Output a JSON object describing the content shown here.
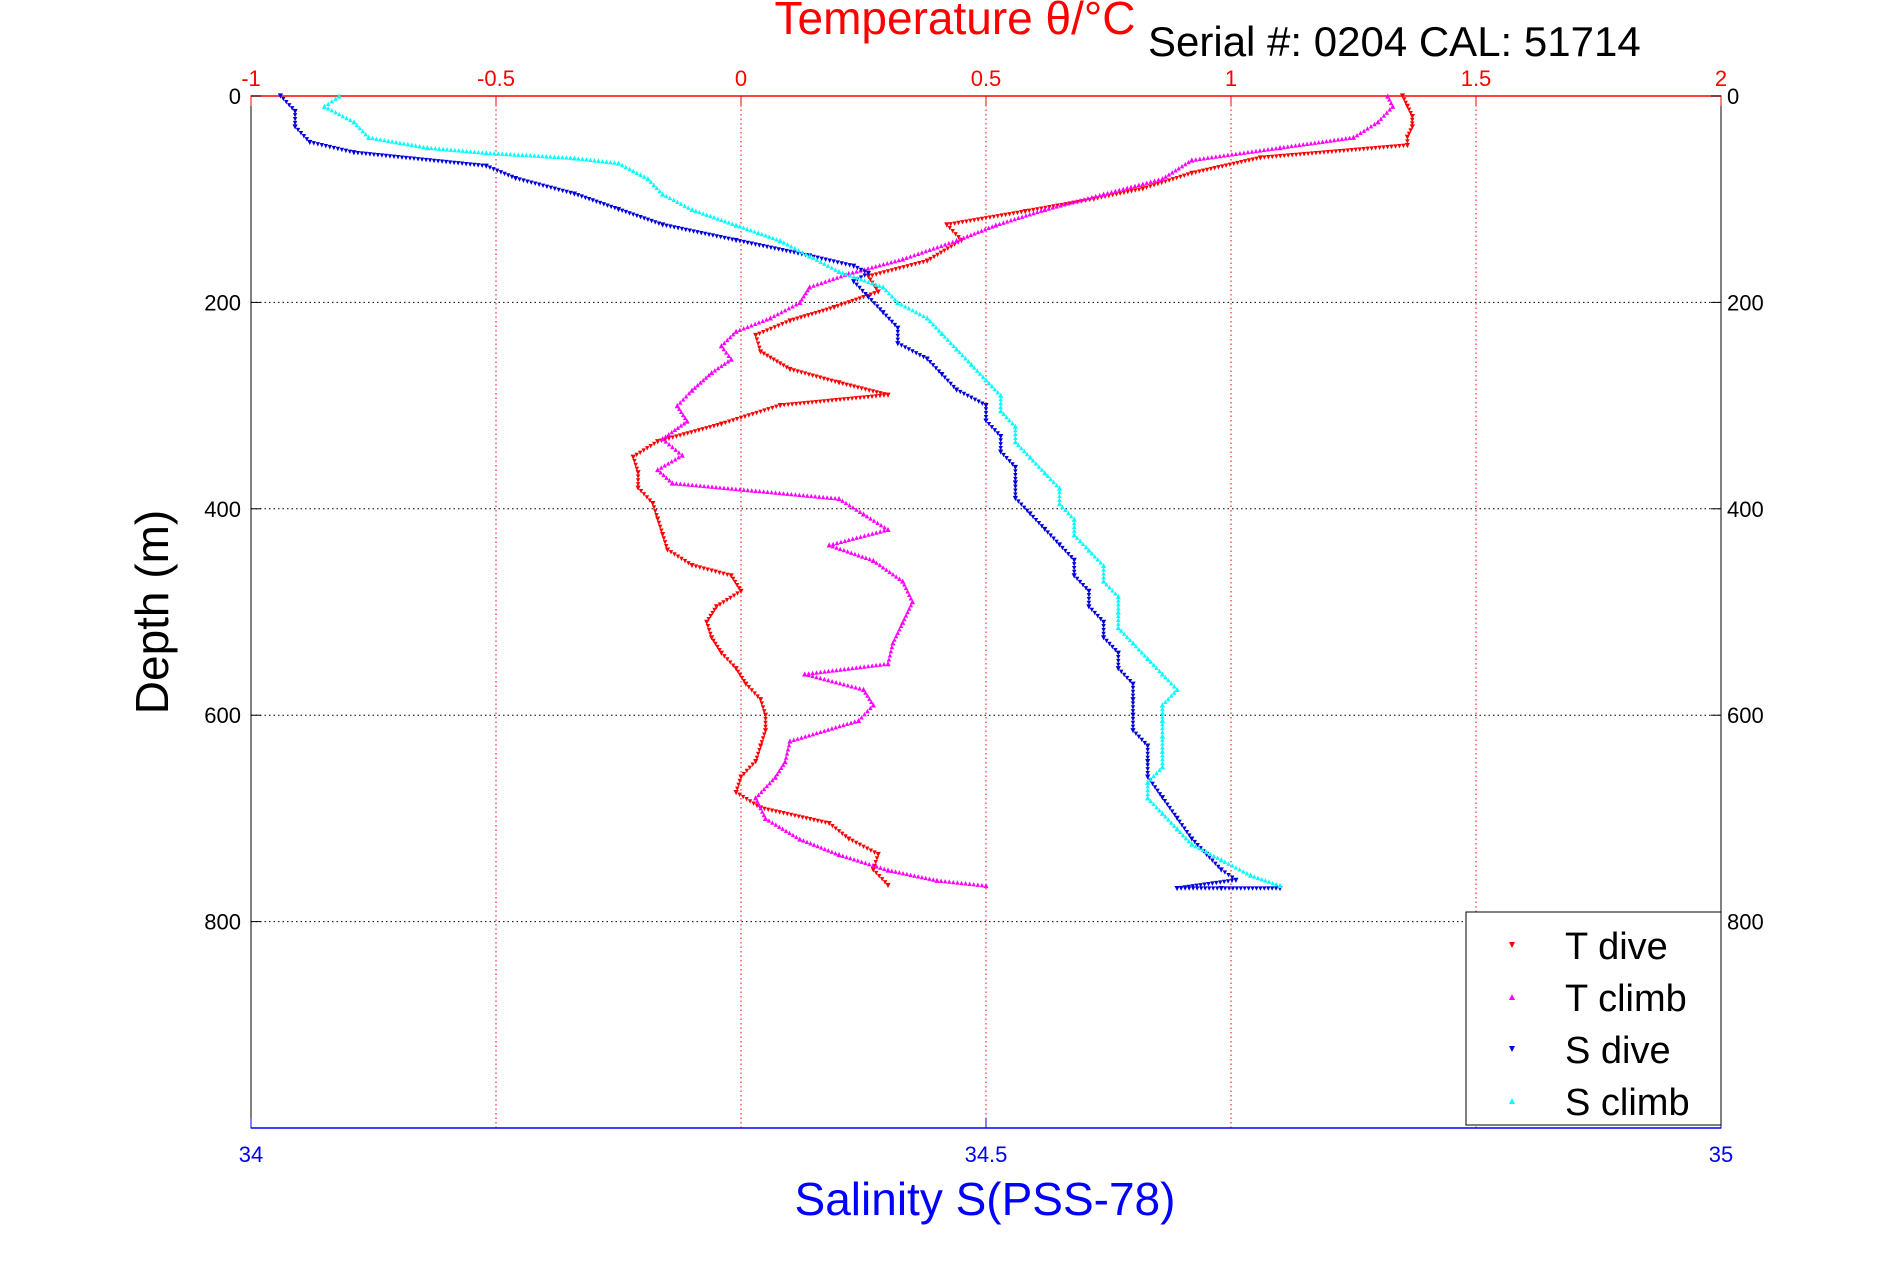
{
  "chart_data": {
    "type": "scatter",
    "title": "Temperature θ/°C",
    "annotation": "Serial #: 0204   CAL: 51714",
    "top_axis": {
      "label": "Temperature θ/°C",
      "range": [
        -1,
        2
      ],
      "ticks": [
        "-1",
        "-0.5",
        "0",
        "0.5",
        "1",
        "1.5",
        "2"
      ],
      "color": "#ff0000"
    },
    "bottom_axis": {
      "label": "Salinity S(PSS-78)",
      "range": [
        34,
        35
      ],
      "ticks": [
        "34",
        "34.5",
        "35"
      ],
      "color": "#0000ff"
    },
    "y_axis": {
      "label": "Depth (m)",
      "range": [
        0,
        1000
      ],
      "reversed": true,
      "ticks": [
        "0",
        "200",
        "400",
        "600",
        "800"
      ],
      "color": "#000000"
    },
    "grid": true,
    "legend_position": "bottom-right",
    "series": [
      {
        "name": "T dive",
        "axis": "top",
        "color": "#ff0000",
        "marker": "triangle-down",
        "points": [
          [
            1.35,
            0
          ],
          [
            1.36,
            10
          ],
          [
            1.37,
            20
          ],
          [
            1.37,
            30
          ],
          [
            1.36,
            40
          ],
          [
            1.36,
            48
          ],
          [
            1.06,
            60
          ],
          [
            0.92,
            75
          ],
          [
            0.82,
            90
          ],
          [
            0.72,
            100
          ],
          [
            0.58,
            112
          ],
          [
            0.42,
            125
          ],
          [
            0.45,
            140
          ],
          [
            0.38,
            160
          ],
          [
            0.26,
            175
          ],
          [
            0.28,
            190
          ],
          [
            0.19,
            205
          ],
          [
            0.1,
            218
          ],
          [
            0.03,
            232
          ],
          [
            0.04,
            248
          ],
          [
            0.1,
            265
          ],
          [
            0.2,
            278
          ],
          [
            0.3,
            290
          ],
          [
            0.08,
            300
          ],
          [
            -0.04,
            318
          ],
          [
            -0.17,
            335
          ],
          [
            -0.22,
            350
          ],
          [
            -0.21,
            365
          ],
          [
            -0.21,
            380
          ],
          [
            -0.18,
            395
          ],
          [
            -0.17,
            410
          ],
          [
            -0.16,
            425
          ],
          [
            -0.15,
            440
          ],
          [
            -0.1,
            455
          ],
          [
            -0.02,
            465
          ],
          [
            0.0,
            480
          ],
          [
            -0.05,
            495
          ],
          [
            -0.07,
            510
          ],
          [
            -0.06,
            525
          ],
          [
            -0.04,
            540
          ],
          [
            -0.01,
            555
          ],
          [
            0.01,
            570
          ],
          [
            0.04,
            585
          ],
          [
            0.05,
            600
          ],
          [
            0.05,
            615
          ],
          [
            0.04,
            630
          ],
          [
            0.03,
            645
          ],
          [
            0.0,
            660
          ],
          [
            -0.01,
            675
          ],
          [
            0.04,
            690
          ],
          [
            0.18,
            705
          ],
          [
            0.22,
            720
          ],
          [
            0.28,
            735
          ],
          [
            0.27,
            750
          ],
          [
            0.3,
            765
          ]
        ]
      },
      {
        "name": "T climb",
        "axis": "top",
        "color": "#ff00ff",
        "marker": "triangle-up",
        "points": [
          [
            1.32,
            0
          ],
          [
            1.33,
            10
          ],
          [
            1.3,
            25
          ],
          [
            1.25,
            40
          ],
          [
            1.1,
            50
          ],
          [
            0.92,
            62
          ],
          [
            0.86,
            80
          ],
          [
            0.74,
            95
          ],
          [
            0.62,
            110
          ],
          [
            0.52,
            125
          ],
          [
            0.44,
            140
          ],
          [
            0.33,
            158
          ],
          [
            0.22,
            172
          ],
          [
            0.14,
            185
          ],
          [
            0.12,
            200
          ],
          [
            0.06,
            215
          ],
          [
            -0.01,
            228
          ],
          [
            -0.04,
            242
          ],
          [
            -0.02,
            255
          ],
          [
            -0.06,
            268
          ],
          [
            -0.1,
            285
          ],
          [
            -0.13,
            300
          ],
          [
            -0.11,
            315
          ],
          [
            -0.16,
            332
          ],
          [
            -0.12,
            348
          ],
          [
            -0.17,
            362
          ],
          [
            -0.14,
            375
          ],
          [
            0.2,
            390
          ],
          [
            0.25,
            405
          ],
          [
            0.3,
            420
          ],
          [
            0.18,
            435
          ],
          [
            0.27,
            450
          ],
          [
            0.33,
            470
          ],
          [
            0.35,
            490
          ],
          [
            0.33,
            510
          ],
          [
            0.31,
            530
          ],
          [
            0.3,
            550
          ],
          [
            0.13,
            560
          ],
          [
            0.25,
            575
          ],
          [
            0.27,
            590
          ],
          [
            0.24,
            605
          ],
          [
            0.1,
            625
          ],
          [
            0.09,
            645
          ],
          [
            0.07,
            660
          ],
          [
            0.03,
            680
          ],
          [
            0.05,
            700
          ],
          [
            0.12,
            720
          ],
          [
            0.2,
            735
          ],
          [
            0.3,
            750
          ],
          [
            0.4,
            760
          ],
          [
            0.5,
            765
          ]
        ]
      },
      {
        "name": "S dive",
        "axis": "bottom",
        "color": "#0000dd",
        "marker": "triangle-down",
        "points": [
          [
            34.02,
            0
          ],
          [
            34.03,
            15
          ],
          [
            34.03,
            30
          ],
          [
            34.04,
            45
          ],
          [
            34.07,
            55
          ],
          [
            34.16,
            68
          ],
          [
            34.18,
            80
          ],
          [
            34.22,
            95
          ],
          [
            34.25,
            110
          ],
          [
            34.28,
            125
          ],
          [
            34.33,
            140
          ],
          [
            34.38,
            155
          ],
          [
            34.41,
            165
          ],
          [
            34.42,
            172
          ],
          [
            34.41,
            180
          ],
          [
            34.42,
            195
          ],
          [
            34.43,
            210
          ],
          [
            34.44,
            225
          ],
          [
            34.44,
            240
          ],
          [
            34.46,
            255
          ],
          [
            34.47,
            270
          ],
          [
            34.48,
            285
          ],
          [
            34.5,
            300
          ],
          [
            34.5,
            315
          ],
          [
            34.51,
            330
          ],
          [
            34.51,
            345
          ],
          [
            34.52,
            360
          ],
          [
            34.52,
            375
          ],
          [
            34.52,
            390
          ],
          [
            34.53,
            405
          ],
          [
            34.54,
            420
          ],
          [
            34.55,
            435
          ],
          [
            34.56,
            450
          ],
          [
            34.56,
            465
          ],
          [
            34.57,
            480
          ],
          [
            34.57,
            495
          ],
          [
            34.58,
            510
          ],
          [
            34.58,
            525
          ],
          [
            34.59,
            540
          ],
          [
            34.59,
            555
          ],
          [
            34.6,
            570
          ],
          [
            34.6,
            585
          ],
          [
            34.6,
            600
          ],
          [
            34.6,
            615
          ],
          [
            34.61,
            630
          ],
          [
            34.61,
            645
          ],
          [
            34.61,
            660
          ],
          [
            34.62,
            680
          ],
          [
            34.63,
            700
          ],
          [
            34.64,
            720
          ],
          [
            34.65,
            735
          ],
          [
            34.66,
            750
          ],
          [
            34.67,
            760
          ],
          [
            34.63,
            768
          ],
          [
            34.66,
            768
          ],
          [
            34.7,
            768
          ]
        ]
      },
      {
        "name": "S climb",
        "axis": "bottom",
        "color": "#00ffff",
        "marker": "triangle-up",
        "points": [
          [
            34.06,
            0
          ],
          [
            34.05,
            10
          ],
          [
            34.07,
            25
          ],
          [
            34.08,
            40
          ],
          [
            34.12,
            50
          ],
          [
            34.16,
            55
          ],
          [
            34.22,
            60
          ],
          [
            34.25,
            65
          ],
          [
            34.27,
            80
          ],
          [
            34.28,
            95
          ],
          [
            34.3,
            110
          ],
          [
            34.33,
            125
          ],
          [
            34.36,
            140
          ],
          [
            34.38,
            155
          ],
          [
            34.4,
            170
          ],
          [
            34.43,
            185
          ],
          [
            34.44,
            200
          ],
          [
            34.46,
            215
          ],
          [
            34.47,
            230
          ],
          [
            34.48,
            245
          ],
          [
            34.49,
            260
          ],
          [
            34.5,
            275
          ],
          [
            34.51,
            290
          ],
          [
            34.51,
            305
          ],
          [
            34.52,
            320
          ],
          [
            34.52,
            335
          ],
          [
            34.53,
            350
          ],
          [
            34.54,
            365
          ],
          [
            34.55,
            380
          ],
          [
            34.55,
            395
          ],
          [
            34.56,
            410
          ],
          [
            34.56,
            425
          ],
          [
            34.57,
            440
          ],
          [
            34.58,
            455
          ],
          [
            34.58,
            470
          ],
          [
            34.59,
            485
          ],
          [
            34.59,
            500
          ],
          [
            34.59,
            515
          ],
          [
            34.6,
            530
          ],
          [
            34.61,
            545
          ],
          [
            34.62,
            560
          ],
          [
            34.63,
            575
          ],
          [
            34.62,
            590
          ],
          [
            34.62,
            605
          ],
          [
            34.62,
            620
          ],
          [
            34.62,
            635
          ],
          [
            34.62,
            650
          ],
          [
            34.61,
            665
          ],
          [
            34.61,
            680
          ],
          [
            34.62,
            695
          ],
          [
            34.63,
            710
          ],
          [
            34.64,
            725
          ],
          [
            34.66,
            740
          ],
          [
            34.68,
            755
          ],
          [
            34.7,
            765
          ]
        ]
      }
    ]
  }
}
